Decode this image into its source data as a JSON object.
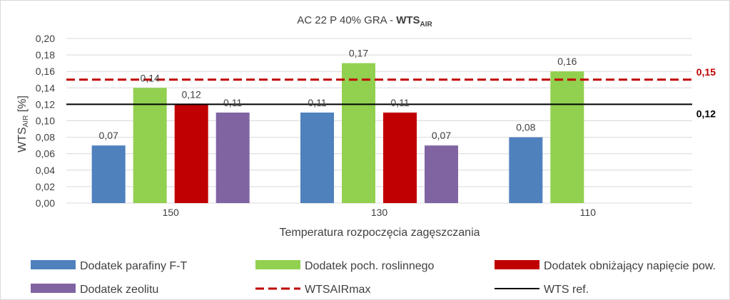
{
  "chart_data": {
    "type": "bar",
    "title_prefix": "AC 22 P 40% GRA - ",
    "title_bold": "WTS",
    "title_sub": "AIR",
    "xlabel": "Temperatura rozpoczęcia zagęszczania",
    "ylabel_main": "WTS",
    "ylabel_sub": "AIR",
    "ylabel_suffix": " [%]",
    "ylim": [
      0,
      0.2
    ],
    "ytick_values": [
      0,
      0.02,
      0.04,
      0.06,
      0.08,
      0.1,
      0.12,
      0.14,
      0.16,
      0.18,
      0.2
    ],
    "ytick_labels": [
      "0,00",
      "0,02",
      "0,04",
      "0,06",
      "0,08",
      "0,10",
      "0,12",
      "0,14",
      "0,16",
      "0,18",
      "0,20"
    ],
    "categories": [
      "150",
      "130",
      "110"
    ],
    "series": [
      {
        "name": "Dodatek parafiny F-T",
        "color": "#4f81bd",
        "values": [
          0.07,
          0.11,
          0.08
        ],
        "labels": [
          "0,07",
          "0,11",
          "0,08"
        ]
      },
      {
        "name": "Dodatek poch. roslinnego",
        "color": "#92d050",
        "values": [
          0.14,
          0.17,
          0.16
        ],
        "labels": [
          "0,14",
          "0,17",
          "0,16"
        ]
      },
      {
        "name": "Dodatek obniżający napięcie pow.",
        "color": "#c00000",
        "values": [
          0.12,
          0.11,
          null
        ],
        "labels": [
          "0,12",
          "0,11",
          ""
        ]
      },
      {
        "name": "Dodatek zeolitu",
        "color": "#8064a2",
        "values": [
          0.11,
          0.07,
          null
        ],
        "labels": [
          "0,11",
          "0,07",
          ""
        ]
      }
    ],
    "lines": [
      {
        "name": "WTSAIRmax",
        "value": 0.15,
        "label": "0,15",
        "color": "#c00000",
        "style": "dashed"
      },
      {
        "name": "WTS ref.",
        "value": 0.12,
        "label": "0,12",
        "color": "#000000",
        "style": "solid"
      }
    ],
    "grid": true,
    "legend_position": "bottom"
  }
}
